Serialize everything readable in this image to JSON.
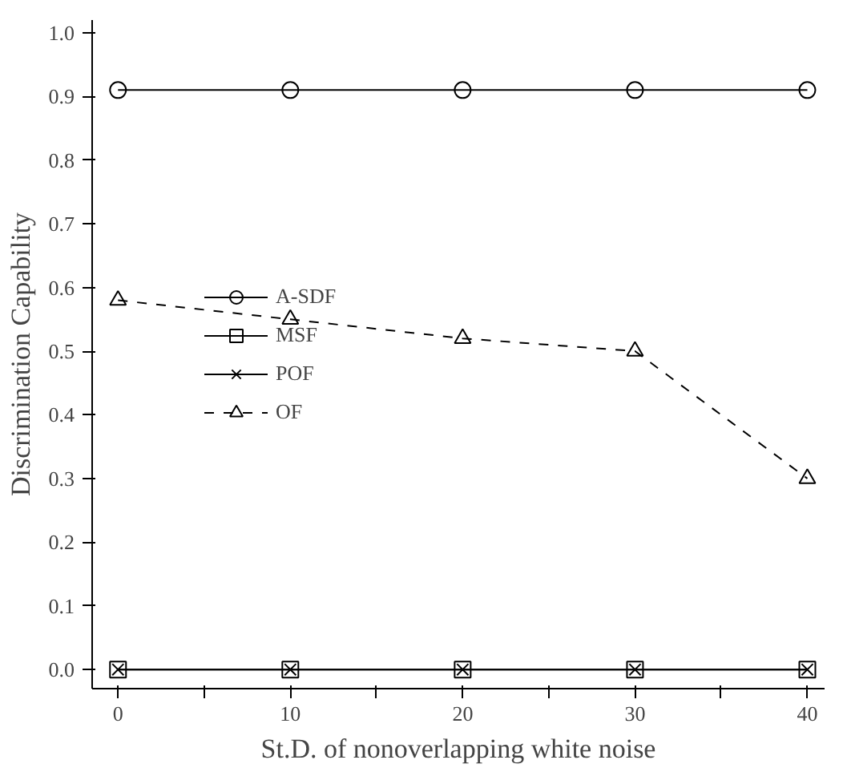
{
  "chart_data": {
    "type": "line",
    "xlabel": "St.D. of nonoverlapping white noise",
    "ylabel": "Discrimination Capability",
    "x": [
      0,
      10,
      20,
      30,
      40
    ],
    "series": [
      {
        "name": "A-SDF",
        "color": "#000000",
        "values": [
          0.91,
          0.91,
          0.91,
          0.91,
          0.91
        ],
        "marker": "circle",
        "line_style": "solid"
      },
      {
        "name": "MSF",
        "color": "#000000",
        "values": [
          0,
          0,
          0,
          0,
          0
        ],
        "marker": "square",
        "line_style": "solid"
      },
      {
        "name": "POF",
        "color": "#000000",
        "values": [
          0,
          0,
          0,
          0,
          0
        ],
        "marker": "cross",
        "line_style": "solid"
      },
      {
        "name": "OF",
        "color": "#000000",
        "values": [
          0.58,
          0.55,
          0.52,
          0.5,
          0.3
        ],
        "marker": "triangle",
        "line_style": "dashed"
      }
    ],
    "xlim": [
      -1.5,
      41
    ],
    "ylim": [
      -0.03,
      1.02
    ],
    "xticks": [
      0,
      {
        "value": 5,
        "label": null
      },
      10,
      {
        "value": 15,
        "label": null
      },
      20,
      {
        "value": 25,
        "label": null
      },
      30,
      {
        "value": 35,
        "label": null
      },
      40
    ],
    "yticks": [
      {
        "value": 0,
        "label": "0.0"
      },
      0.1,
      0.2,
      0.3,
      0.4,
      0.5,
      0.6,
      0.7,
      0.8,
      0.9,
      {
        "value": 1,
        "label": "1.0"
      }
    ],
    "grid": false,
    "legend": "left"
  }
}
